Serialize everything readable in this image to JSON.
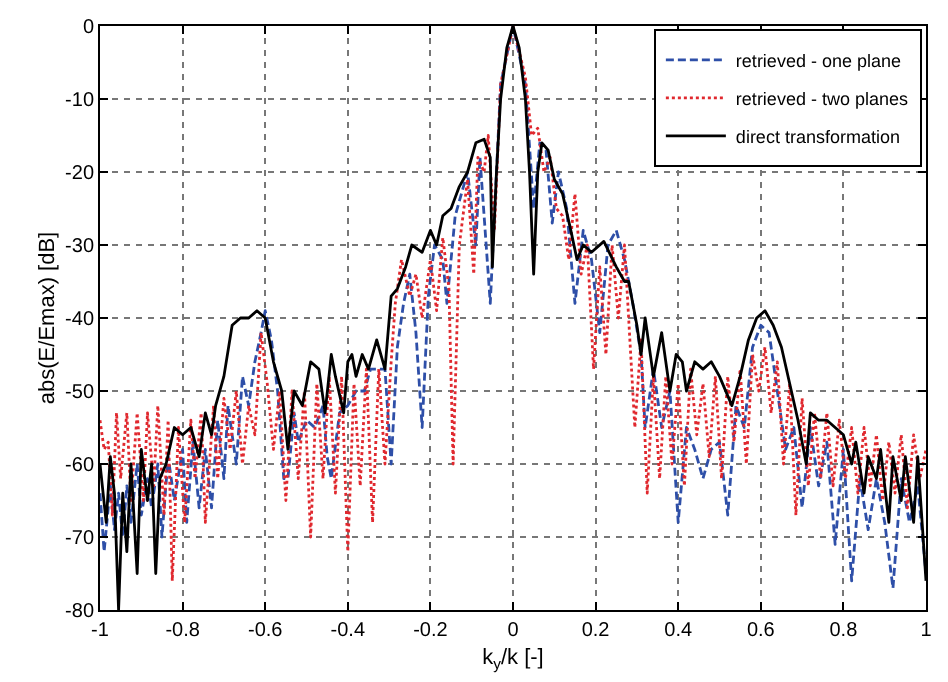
{
  "chart_data": {
    "type": "line",
    "xlabel": "k$_{y}$/k [-]",
    "ylabel": "abs(E/Emax) [dB]",
    "xlim": [
      -1,
      1
    ],
    "ylim": [
      -80,
      0
    ],
    "xticks": [
      -1,
      -0.8,
      -0.6,
      -0.4,
      -0.2,
      0,
      0.2,
      0.4,
      0.6,
      0.8,
      1
    ],
    "yticks": [
      -80,
      -70,
      -60,
      -50,
      -40,
      -30,
      -20,
      -10,
      0
    ],
    "grid": true,
    "legend": "top right",
    "series": [
      {
        "name": "retrieved - one plane",
        "color": "#2e4fa8",
        "line_style": "dashed",
        "x": [
          -1,
          -0.99,
          -0.975,
          -0.965,
          -0.955,
          -0.945,
          -0.935,
          -0.925,
          -0.91,
          -0.9,
          -0.885,
          -0.875,
          -0.86,
          -0.85,
          -0.835,
          -0.82,
          -0.8,
          -0.79,
          -0.775,
          -0.76,
          -0.745,
          -0.73,
          -0.715,
          -0.7,
          -0.69,
          -0.67,
          -0.655,
          -0.64,
          -0.625,
          -0.61,
          -0.6,
          -0.585,
          -0.57,
          -0.555,
          -0.545,
          -0.53,
          -0.52,
          -0.5,
          -0.48,
          -0.46,
          -0.45,
          -0.44,
          -0.42,
          -0.4,
          -0.38,
          -0.36,
          -0.345,
          -0.33,
          -0.31,
          -0.295,
          -0.28,
          -0.265,
          -0.25,
          -0.235,
          -0.22,
          -0.205,
          -0.19,
          -0.17,
          -0.16,
          -0.14,
          -0.12,
          -0.11,
          -0.09,
          -0.08,
          -0.065,
          -0.055,
          -0.03,
          0,
          0.03,
          0.05,
          0.065,
          0.08,
          0.095,
          0.11,
          0.13,
          0.15,
          0.17,
          0.19,
          0.21,
          0.23,
          0.25,
          0.27,
          0.29,
          0.31,
          0.32,
          0.34,
          0.36,
          0.38,
          0.4,
          0.42,
          0.44,
          0.46,
          0.48,
          0.5,
          0.52,
          0.54,
          0.56,
          0.58,
          0.6,
          0.62,
          0.64,
          0.66,
          0.68,
          0.7,
          0.72,
          0.74,
          0.76,
          0.78,
          0.8,
          0.82,
          0.84,
          0.86,
          0.88,
          0.9,
          0.92,
          0.94,
          0.96,
          0.98,
          1
        ],
        "values": [
          -64,
          -72,
          -63,
          -69,
          -64,
          -70,
          -63,
          -68,
          -60,
          -67,
          -62,
          -66,
          -60,
          -70,
          -59,
          -65,
          -58,
          -68,
          -57,
          -66,
          -58,
          -66,
          -54,
          -62,
          -52,
          -60,
          -48,
          -52,
          -46,
          -42,
          -39,
          -43,
          -50,
          -62,
          -62,
          -53,
          -57,
          -54,
          -55,
          -52,
          -59,
          -62,
          -53,
          -52,
          -50,
          -50,
          -47,
          -47,
          -47,
          -60,
          -44,
          -38,
          -34,
          -42,
          -55,
          -37,
          -30,
          -32,
          -38,
          -26,
          -22,
          -20,
          -30,
          -18,
          -30,
          -38,
          -8,
          0,
          -8,
          -25,
          -16,
          -17,
          -27,
          -20,
          -25,
          -38,
          -28,
          -32,
          -42,
          -30,
          -28,
          -32,
          -38,
          -45,
          -55,
          -47,
          -55,
          -50,
          -68,
          -55,
          -58,
          -62,
          -58,
          -57,
          -67,
          -52,
          -55,
          -44,
          -41,
          -42,
          -50,
          -58,
          -55,
          -66,
          -55,
          -63,
          -57,
          -71,
          -58,
          -76,
          -62,
          -69,
          -62,
          -68,
          -77,
          -62,
          -68,
          -63,
          -75
        ]
      },
      {
        "name": "retrieved - two planes",
        "color": "#e0282e",
        "line_style": "dotted",
        "x": [
          -1,
          -0.99,
          -0.98,
          -0.97,
          -0.96,
          -0.95,
          -0.935,
          -0.925,
          -0.91,
          -0.895,
          -0.885,
          -0.87,
          -0.86,
          -0.845,
          -0.835,
          -0.825,
          -0.81,
          -0.795,
          -0.78,
          -0.77,
          -0.755,
          -0.745,
          -0.725,
          -0.715,
          -0.7,
          -0.685,
          -0.67,
          -0.655,
          -0.64,
          -0.625,
          -0.61,
          -0.595,
          -0.58,
          -0.565,
          -0.55,
          -0.535,
          -0.52,
          -0.505,
          -0.49,
          -0.475,
          -0.46,
          -0.445,
          -0.43,
          -0.415,
          -0.4,
          -0.385,
          -0.37,
          -0.355,
          -0.34,
          -0.325,
          -0.31,
          -0.295,
          -0.285,
          -0.27,
          -0.25,
          -0.235,
          -0.22,
          -0.2,
          -0.185,
          -0.17,
          -0.155,
          -0.145,
          -0.13,
          -0.11,
          -0.095,
          -0.085,
          -0.07,
          -0.06,
          -0.045,
          -0.03,
          0,
          0.03,
          0.045,
          0.06,
          0.075,
          0.09,
          0.105,
          0.12,
          0.135,
          0.15,
          0.165,
          0.18,
          0.195,
          0.21,
          0.225,
          0.24,
          0.255,
          0.27,
          0.285,
          0.295,
          0.31,
          0.325,
          0.34,
          0.355,
          0.37,
          0.385,
          0.4,
          0.415,
          0.43,
          0.445,
          0.46,
          0.475,
          0.49,
          0.505,
          0.52,
          0.535,
          0.55,
          0.565,
          0.58,
          0.595,
          0.61,
          0.625,
          0.64,
          0.655,
          0.67,
          0.685,
          0.7,
          0.715,
          0.73,
          0.745,
          0.76,
          0.775,
          0.79,
          0.805,
          0.82,
          0.835,
          0.85,
          0.865,
          0.88,
          0.895,
          0.91,
          0.925,
          0.94,
          0.955,
          0.97,
          0.985,
          1
        ],
        "values": [
          -54,
          -58,
          -57,
          -67,
          -53,
          -62,
          -53,
          -65,
          -53,
          -65,
          -53,
          -63,
          -52,
          -67,
          -54,
          -76,
          -55,
          -68,
          -54,
          -62,
          -53,
          -68,
          -52,
          -62,
          -51,
          -58,
          -50,
          -60,
          -52,
          -56,
          -42,
          -49,
          -58,
          -50,
          -65,
          -50,
          -62,
          -50,
          -70,
          -49,
          -62,
          -48,
          -64,
          -48,
          -72,
          -49,
          -63,
          -47,
          -68,
          -47,
          -60,
          -46,
          -38,
          -32,
          -37,
          -34,
          -40,
          -32,
          -39,
          -29,
          -36,
          -60,
          -30,
          -21,
          -34,
          -18,
          -20,
          -15,
          -28,
          -8,
          0,
          -7,
          -15,
          -14,
          -20,
          -18,
          -25,
          -26,
          -32,
          -23,
          -34,
          -30,
          -47,
          -33,
          -45,
          -30,
          -40,
          -30,
          -45,
          -55,
          -43,
          -64,
          -48,
          -62,
          -48,
          -60,
          -49,
          -63,
          -47,
          -56,
          -49,
          -59,
          -48,
          -62,
          -48,
          -57,
          -47,
          -60,
          -45,
          -50,
          -44,
          -53,
          -46,
          -60,
          -49,
          -67,
          -51,
          -63,
          -53,
          -62,
          -53,
          -63,
          -54,
          -62,
          -55,
          -64,
          -55,
          -63,
          -56,
          -65,
          -57,
          -64,
          -56,
          -66,
          -56,
          -62,
          -58
        ]
      },
      {
        "name": "direct transformation",
        "color": "#000000",
        "line_style": "solid",
        "x": [
          -1,
          -0.985,
          -0.975,
          -0.965,
          -0.955,
          -0.945,
          -0.935,
          -0.925,
          -0.91,
          -0.9,
          -0.885,
          -0.875,
          -0.865,
          -0.855,
          -0.84,
          -0.82,
          -0.8,
          -0.78,
          -0.76,
          -0.745,
          -0.73,
          -0.72,
          -0.7,
          -0.68,
          -0.66,
          -0.64,
          -0.62,
          -0.6,
          -0.58,
          -0.56,
          -0.545,
          -0.53,
          -0.51,
          -0.49,
          -0.47,
          -0.455,
          -0.44,
          -0.43,
          -0.41,
          -0.4,
          -0.39,
          -0.38,
          -0.365,
          -0.35,
          -0.33,
          -0.31,
          -0.295,
          -0.28,
          -0.26,
          -0.245,
          -0.22,
          -0.2,
          -0.185,
          -0.17,
          -0.15,
          -0.13,
          -0.11,
          -0.09,
          -0.07,
          -0.055,
          -0.05,
          -0.04,
          -0.03,
          -0.015,
          0,
          0.015,
          0.03,
          0.04,
          0.05,
          0.06,
          0.07,
          0.085,
          0.1,
          0.12,
          0.14,
          0.155,
          0.17,
          0.19,
          0.22,
          0.25,
          0.27,
          0.28,
          0.3,
          0.31,
          0.32,
          0.34,
          0.36,
          0.38,
          0.395,
          0.41,
          0.42,
          0.44,
          0.46,
          0.48,
          0.5,
          0.53,
          0.55,
          0.57,
          0.59,
          0.61,
          0.63,
          0.65,
          0.67,
          0.69,
          0.71,
          0.72,
          0.74,
          0.76,
          0.78,
          0.8,
          0.82,
          0.83,
          0.85,
          0.86,
          0.88,
          0.89,
          0.91,
          0.92,
          0.94,
          0.95,
          0.97,
          0.98,
          1
        ],
        "values": [
          -60,
          -68,
          -59,
          -64,
          -80,
          -64,
          -72,
          -60,
          -75,
          -58,
          -65,
          -60,
          -75,
          -62,
          -60,
          -55,
          -56,
          -55,
          -59,
          -53,
          -56,
          -52,
          -48,
          -41,
          -40,
          -40,
          -39,
          -40,
          -46,
          -50,
          -58,
          -50,
          -52,
          -46,
          -47,
          -53,
          -45,
          -48,
          -53,
          -46,
          -45,
          -48,
          -45,
          -47,
          -43,
          -47,
          -37,
          -36,
          -33,
          -30,
          -31,
          -28,
          -30,
          -26,
          -25,
          -22,
          -20,
          -16,
          -15.5,
          -18,
          -33,
          -20,
          -10,
          -3,
          0,
          -3,
          -10,
          -20,
          -34,
          -20,
          -16,
          -17,
          -21,
          -23,
          -28,
          -32,
          -30,
          -31,
          -29.5,
          -33,
          -35,
          -35,
          -41,
          -45,
          -40,
          -48,
          -42,
          -50,
          -45,
          -46,
          -50,
          -46,
          -47,
          -46,
          -48,
          -52,
          -48,
          -43,
          -40,
          -39,
          -41,
          -44,
          -49,
          -54,
          -60,
          -53,
          -54,
          -54,
          -55,
          -56,
          -60,
          -57,
          -64,
          -59,
          -62,
          -58,
          -68,
          -59,
          -65,
          -59,
          -68,
          -59,
          -76
        ]
      }
    ]
  }
}
